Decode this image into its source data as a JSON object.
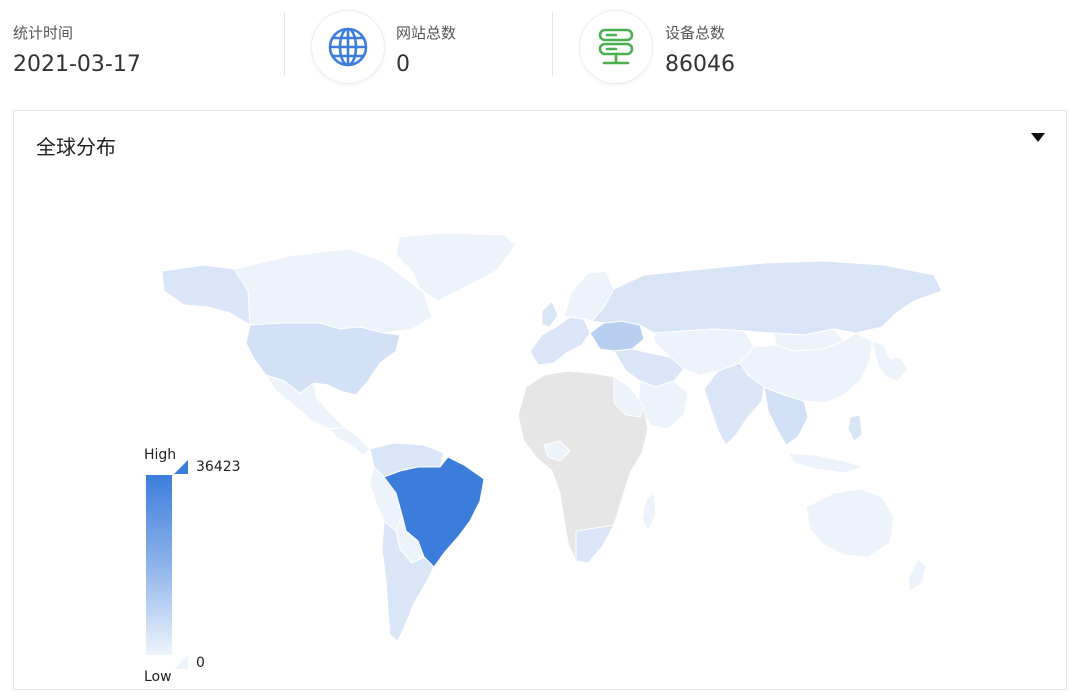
{
  "stats": {
    "date": {
      "label": "统计时间",
      "value": "2021-03-17"
    },
    "websites": {
      "label": "网站总数",
      "value": "0",
      "icon": "globe-icon"
    },
    "devices": {
      "label": "设备总数",
      "value": "86046",
      "icon": "server-icon"
    }
  },
  "colors": {
    "globe": "#3c7ddc",
    "server": "#4caf50",
    "high": "#3c7ddc",
    "low": "#eef4fc",
    "no_data": "#e6e6e6"
  },
  "panel": {
    "title": "全球分布",
    "menu_icon": "caret-down-icon"
  },
  "legend": {
    "high_label": "High",
    "low_label": "Low",
    "max_value": "36423",
    "min_value": "0"
  }
}
